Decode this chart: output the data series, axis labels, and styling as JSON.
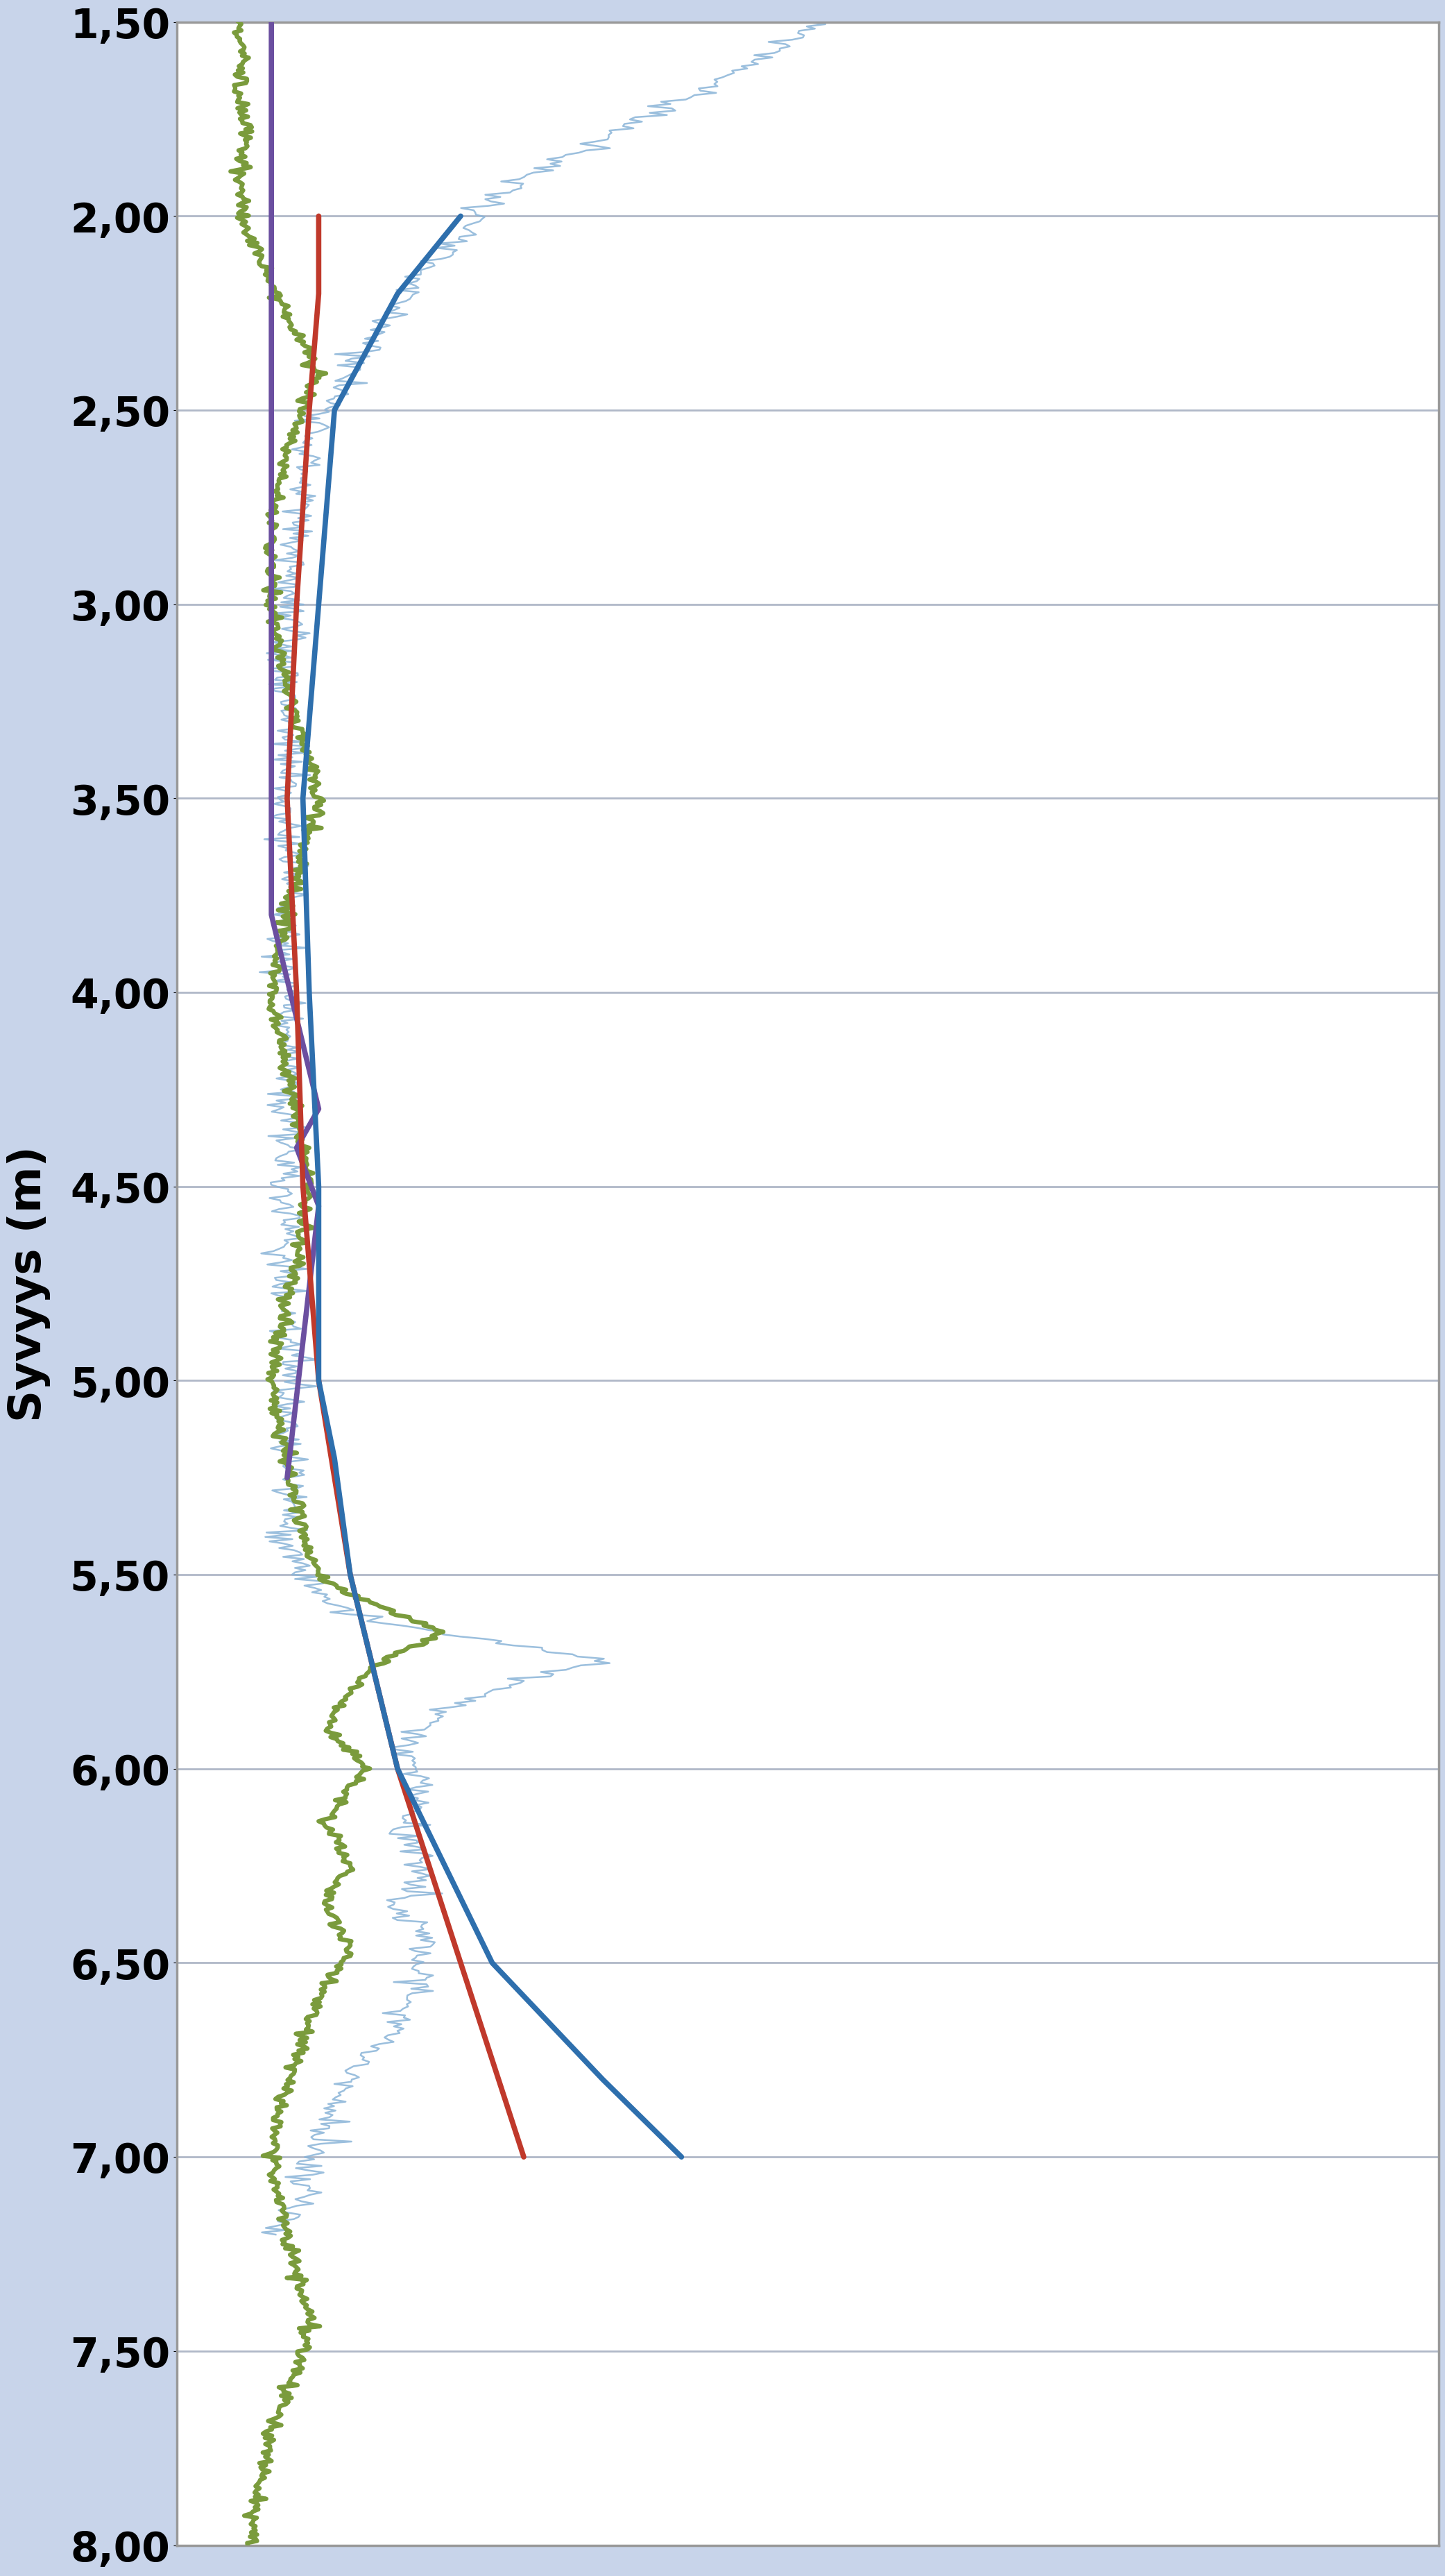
{
  "ylabel": "Syvyys (m)",
  "xlim": [
    0,
    40
  ],
  "ylim": [
    1.5,
    8.0
  ],
  "background_color": "#c8d4ea",
  "plot_background": "#ffffff",
  "grid_color": "#b0b8c8",
  "ylabel_fontsize": 46,
  "tick_fontsize": 42,
  "lightblue_color": "#8ab4d8",
  "green_color": "#7a9b3c",
  "purple_color": "#6b4fa0",
  "red_color": "#c0392b",
  "blue_color": "#2e6fad",
  "note": "All x values are in kPa (0-40 scale), y values are depth in meters"
}
